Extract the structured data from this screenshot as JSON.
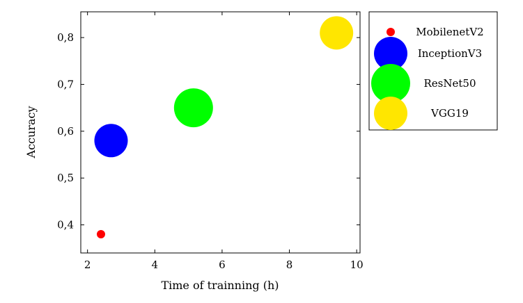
{
  "chart_data": {
    "type": "scatter",
    "xlabel": "Time of trainning (h)",
    "ylabel": "Accuracy",
    "xlim": [
      1.8,
      10.1
    ],
    "ylim": [
      0.34,
      0.855
    ],
    "xticks": [
      2,
      4,
      6,
      8,
      10
    ],
    "yticks": [
      0.4,
      0.5,
      0.6,
      0.7,
      0.8
    ],
    "xtick_labels": [
      "2",
      "4",
      "6",
      "8",
      "10"
    ],
    "ytick_labels": [
      "0,4",
      "0,5",
      "0,6",
      "0,7",
      "0,8"
    ],
    "grid": false,
    "legend_position": "outside-right-top",
    "series": [
      {
        "name": "MobilenetV2",
        "x": 2.4,
        "y": 0.38,
        "size": 1,
        "color": "#ff0000"
      },
      {
        "name": "InceptionV3",
        "x": 2.7,
        "y": 0.58,
        "size": 4,
        "color": "#0000ff"
      },
      {
        "name": "ResNet50",
        "x": 5.15,
        "y": 0.65,
        "size": 5,
        "color": "#00ff00"
      },
      {
        "name": "VGG19",
        "x": 9.4,
        "y": 0.81,
        "size": 4,
        "color": "#ffe600"
      }
    ]
  }
}
